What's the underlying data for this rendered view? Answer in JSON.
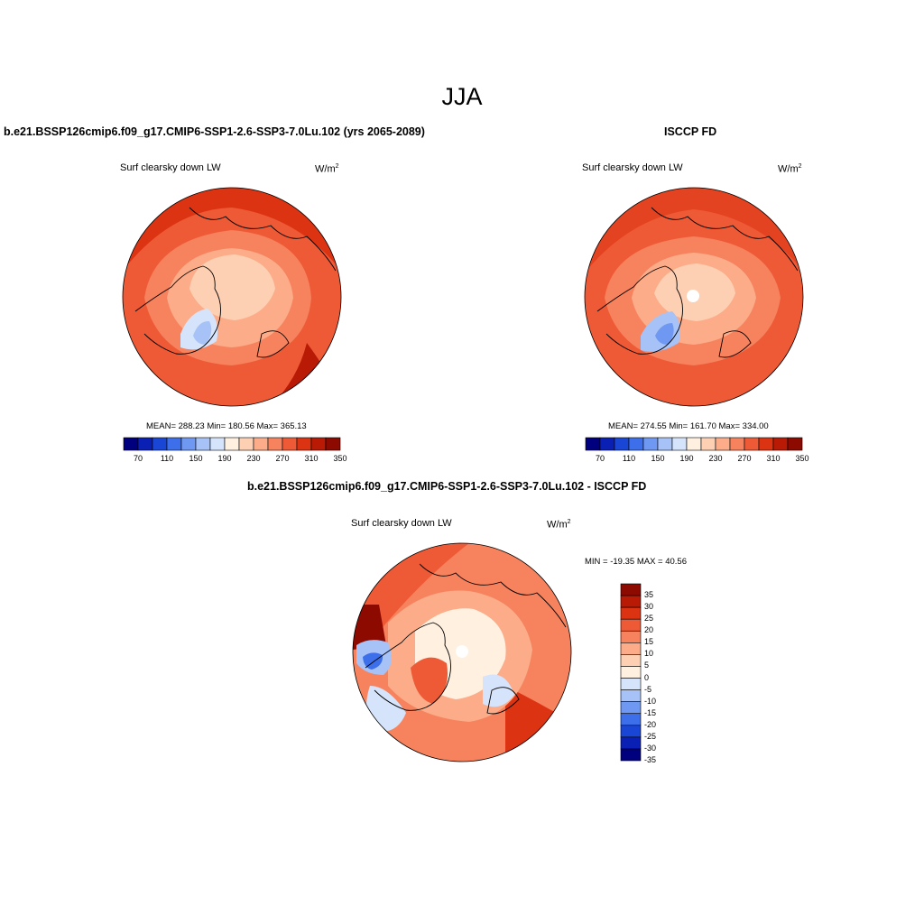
{
  "main_title": "JJA",
  "panels": [
    {
      "title": "b.e21.BSSP126cmip6.f09_g17.CMIP6-SSP1-2.6-SSP3-7.0Lu.102 (yrs 2065-2089)",
      "variable": "Surf clearsky down LW",
      "units_base": "W/m",
      "units_exp": "2",
      "stats": "MEAN= 288.23  Min= 180.56  Max= 365.13"
    },
    {
      "title": "ISCCP FD",
      "variable": "Surf clearsky down LW",
      "units_base": "W/m",
      "units_exp": "2",
      "stats": "MEAN= 274.55  Min= 161.70  Max= 334.00"
    },
    {
      "title": "b.e21.BSSP126cmip6.f09_g17.CMIP6-SSP1-2.6-SSP3-7.0Lu.102 - ISCCP FD",
      "variable": "Surf clearsky down LW",
      "units_base": "W/m",
      "units_exp": "2",
      "stats": "MIN = -19.35 MAX =  40.56"
    }
  ],
  "colorbar_abs": {
    "colors": [
      "#00007f",
      "#0a1fb4",
      "#1a46d6",
      "#3c6fe9",
      "#6f98f2",
      "#a6c2f7",
      "#d6e4fb",
      "#fff0e0",
      "#fdd0b4",
      "#fcac88",
      "#f7825e",
      "#ee5a36",
      "#dc3412",
      "#b81a06",
      "#8c0a00"
    ],
    "labels": [
      "70",
      "110",
      "150",
      "190",
      "230",
      "270",
      "310",
      "350"
    ]
  },
  "colorbar_diff": {
    "colors": [
      "#8c0a00",
      "#b81a06",
      "#dc3412",
      "#ee5a36",
      "#f7825e",
      "#fcac88",
      "#fdd0b4",
      "#fff0e0",
      "#d6e4fb",
      "#a6c2f7",
      "#6f98f2",
      "#3c6fe9",
      "#1a46d6",
      "#0a1fb4",
      "#00007f"
    ],
    "labels": [
      "35",
      "30",
      "25",
      "20",
      "15",
      "10",
      "5",
      "0",
      "-5",
      "-10",
      "-15",
      "-20",
      "-25",
      "-30",
      "-35"
    ]
  }
}
